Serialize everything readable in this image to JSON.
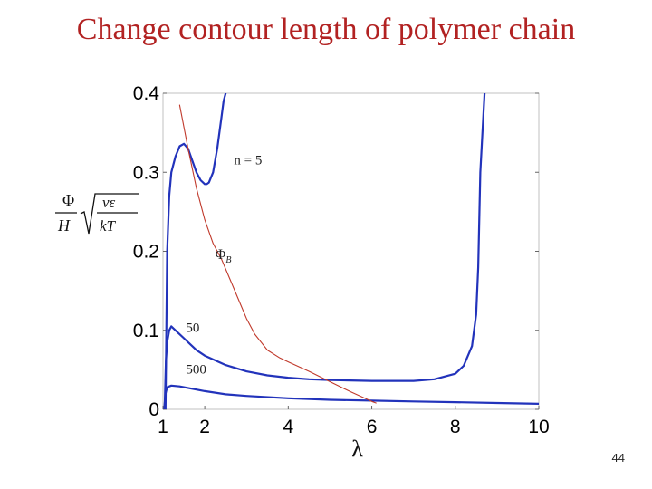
{
  "slide": {
    "title": "Change contour length of polymer chain",
    "page_number": "44"
  },
  "colors": {
    "title": "#b22222",
    "curve": "#2233bb",
    "phi_b_line": "#c0392b"
  },
  "chart_data": {
    "type": "line",
    "title": "",
    "xlabel": "λ",
    "ylabel": "Φ/H √(vε/kT)",
    "xlim": [
      1,
      10
    ],
    "ylim": [
      0,
      0.4
    ],
    "x_ticks": [
      "1",
      "2",
      "4",
      "6",
      "8",
      "10"
    ],
    "y_ticks": [
      "0",
      "0.1",
      "0.2",
      "0.3",
      "0.4"
    ],
    "grid": false,
    "legend": "none",
    "annotations": [
      {
        "text": "n = 5",
        "x": 2.7,
        "y": 0.31
      },
      {
        "text": "Φ_B",
        "x": 2.25,
        "y": 0.19
      },
      {
        "text": "50",
        "x": 1.55,
        "y": 0.098
      },
      {
        "text": "500",
        "x": 1.55,
        "y": 0.045
      }
    ],
    "series": [
      {
        "label": "n = 5",
        "color": "#2233bb",
        "x": [
          1.06,
          1.1,
          1.15,
          1.2,
          1.3,
          1.4,
          1.5,
          1.6,
          1.7,
          1.8,
          1.9,
          2.0,
          2.05,
          2.1,
          2.2,
          2.3,
          2.4,
          2.45,
          2.5
        ],
        "y": [
          0.0,
          0.2,
          0.27,
          0.3,
          0.32,
          0.333,
          0.336,
          0.33,
          0.315,
          0.3,
          0.29,
          0.285,
          0.285,
          0.287,
          0.3,
          0.33,
          0.37,
          0.39,
          0.4
        ]
      },
      {
        "label": "50",
        "color": "#2233bb",
        "x": [
          1.04,
          1.07,
          1.1,
          1.15,
          1.2,
          1.3,
          1.5,
          1.8,
          2.0,
          2.5,
          3.0,
          3.5,
          4.0,
          4.5,
          5.0,
          6.0,
          7.0,
          7.5,
          8.0,
          8.2,
          8.4,
          8.5,
          8.55,
          8.6,
          8.7
        ],
        "y": [
          0.0,
          0.06,
          0.085,
          0.1,
          0.105,
          0.1,
          0.09,
          0.075,
          0.068,
          0.056,
          0.048,
          0.043,
          0.04,
          0.038,
          0.037,
          0.036,
          0.036,
          0.038,
          0.045,
          0.055,
          0.08,
          0.12,
          0.18,
          0.3,
          0.4
        ]
      },
      {
        "label": "500",
        "color": "#2233bb",
        "x": [
          1.03,
          1.06,
          1.1,
          1.2,
          1.4,
          1.7,
          2.0,
          2.5,
          3.0,
          4.0,
          5.0,
          6.0,
          7.0,
          8.0,
          9.0,
          10.0
        ],
        "y": [
          0.0,
          0.02,
          0.028,
          0.03,
          0.029,
          0.026,
          0.023,
          0.019,
          0.017,
          0.014,
          0.012,
          0.011,
          0.01,
          0.009,
          0.008,
          0.007
        ]
      },
      {
        "label": "Φ_B",
        "color": "#c0392b",
        "x": [
          1.4,
          1.6,
          1.8,
          2.0,
          2.2,
          2.4,
          2.6,
          2.8,
          3.0,
          3.2,
          3.5,
          3.8,
          4.0,
          4.5,
          5.0,
          5.5,
          6.0,
          6.1
        ],
        "y": [
          0.385,
          0.33,
          0.28,
          0.24,
          0.21,
          0.19,
          0.165,
          0.14,
          0.115,
          0.095,
          0.075,
          0.065,
          0.06,
          0.048,
          0.035,
          0.022,
          0.01,
          0.008
        ]
      }
    ]
  }
}
